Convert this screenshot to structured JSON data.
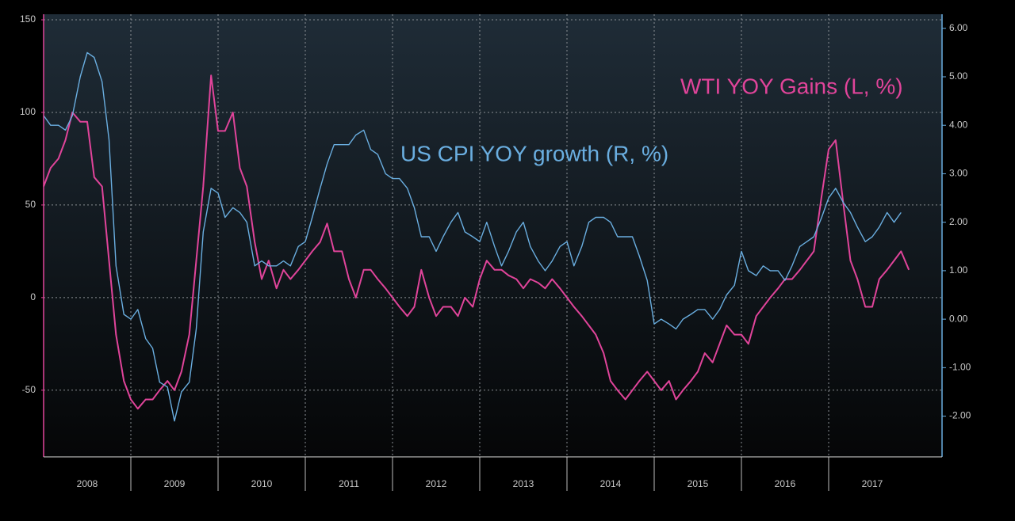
{
  "chart_data": {
    "type": "line",
    "annotations": [
      "WTI YOY Gains (L, %)",
      "US CPI YOY growth (R, %)"
    ],
    "x": [
      2008.0,
      2008.08,
      2008.17,
      2008.25,
      2008.33,
      2008.42,
      2008.5,
      2008.58,
      2008.67,
      2008.75,
      2008.83,
      2008.92,
      2009.0,
      2009.08,
      2009.17,
      2009.25,
      2009.33,
      2009.42,
      2009.5,
      2009.58,
      2009.67,
      2009.75,
      2009.83,
      2009.92,
      2010.0,
      2010.08,
      2010.17,
      2010.25,
      2010.33,
      2010.42,
      2010.5,
      2010.58,
      2010.67,
      2010.75,
      2010.83,
      2010.92,
      2011.0,
      2011.08,
      2011.17,
      2011.25,
      2011.33,
      2011.42,
      2011.5,
      2011.58,
      2011.67,
      2011.75,
      2011.83,
      2011.92,
      2012.0,
      2012.08,
      2012.17,
      2012.25,
      2012.33,
      2012.42,
      2012.5,
      2012.58,
      2012.67,
      2012.75,
      2012.83,
      2012.92,
      2013.0,
      2013.08,
      2013.17,
      2013.25,
      2013.33,
      2013.42,
      2013.5,
      2013.58,
      2013.67,
      2013.75,
      2013.83,
      2013.92,
      2014.0,
      2014.08,
      2014.17,
      2014.25,
      2014.33,
      2014.42,
      2014.5,
      2014.58,
      2014.67,
      2014.75,
      2014.83,
      2014.92,
      2015.0,
      2015.08,
      2015.17,
      2015.25,
      2015.33,
      2015.42,
      2015.5,
      2015.58,
      2015.67,
      2015.75,
      2015.83,
      2015.92,
      2016.0,
      2016.08,
      2016.17,
      2016.25,
      2016.33,
      2016.42,
      2016.5,
      2016.58,
      2016.67,
      2016.75,
      2016.83,
      2016.92,
      2017.0,
      2017.08,
      2017.17,
      2017.25,
      2017.33,
      2017.42,
      2017.5,
      2017.58,
      2017.67,
      2017.75,
      2017.83,
      2017.92
    ],
    "series": [
      {
        "name": "WTI YOY Gains",
        "color": "#e0449a",
        "axis": "y",
        "values": [
          60,
          70,
          75,
          85,
          100,
          95,
          95,
          65,
          60,
          20,
          -20,
          -45,
          -55,
          -60,
          -55,
          -55,
          -50,
          -45,
          -50,
          -40,
          -20,
          20,
          60,
          120,
          90,
          90,
          100,
          70,
          60,
          30,
          10,
          20,
          5,
          15,
          10,
          15,
          20,
          25,
          30,
          40,
          25,
          25,
          10,
          0,
          15,
          15,
          10,
          5,
          0,
          -5,
          -10,
          -5,
          15,
          0,
          -10,
          -5,
          -5,
          -10,
          0,
          -5,
          10,
          20,
          15,
          15,
          12,
          10,
          5,
          10,
          8,
          5,
          10,
          5,
          0,
          -5,
          -10,
          -15,
          -20,
          -30,
          -45,
          -50,
          -55,
          -50,
          -45,
          -40,
          -45,
          -50,
          -45,
          -55,
          -50,
          -45,
          -40,
          -30,
          -35,
          -25,
          -15,
          -20,
          -20,
          -25,
          -10,
          -5,
          0,
          5,
          10,
          10,
          15,
          20,
          25,
          55,
          80,
          85,
          50,
          20,
          10,
          -5,
          -5,
          10,
          15,
          20,
          25,
          15
        ]
      },
      {
        "name": "US CPI YOY growth",
        "color": "#6aaee0",
        "axis": "y2",
        "values": [
          4.2,
          4.0,
          4.0,
          3.9,
          4.2,
          5.0,
          5.5,
          5.4,
          4.9,
          3.7,
          1.1,
          0.1,
          0.0,
          0.2,
          -0.4,
          -0.6,
          -1.3,
          -1.4,
          -2.1,
          -1.5,
          -1.3,
          -0.2,
          1.8,
          2.7,
          2.6,
          2.1,
          2.3,
          2.2,
          2.0,
          1.1,
          1.2,
          1.1,
          1.1,
          1.2,
          1.1,
          1.5,
          1.6,
          2.1,
          2.7,
          3.2,
          3.6,
          3.6,
          3.6,
          3.8,
          3.9,
          3.5,
          3.4,
          3.0,
          2.9,
          2.9,
          2.7,
          2.3,
          1.7,
          1.7,
          1.4,
          1.7,
          2.0,
          2.2,
          1.8,
          1.7,
          1.6,
          2.0,
          1.5,
          1.1,
          1.4,
          1.8,
          2.0,
          1.5,
          1.2,
          1.0,
          1.2,
          1.5,
          1.6,
          1.1,
          1.5,
          2.0,
          2.1,
          2.1,
          2.0,
          1.7,
          1.7,
          1.7,
          1.3,
          0.8,
          -0.1,
          0.0,
          -0.1,
          -0.2,
          0.0,
          0.1,
          0.2,
          0.2,
          0.0,
          0.2,
          0.5,
          0.7,
          1.4,
          1.0,
          0.9,
          1.1,
          1.0,
          1.0,
          0.8,
          1.1,
          1.5,
          1.6,
          1.7,
          2.1,
          2.5,
          2.7,
          2.4,
          2.2,
          1.9,
          1.6,
          1.7,
          1.9,
          2.2,
          2.0,
          2.2,
          null
        ]
      }
    ],
    "xlim": [
      2008,
      2018.3
    ],
    "xticks": [
      {
        "value": 2008.5,
        "label": "2008"
      },
      {
        "value": 2009.5,
        "label": "2009"
      },
      {
        "value": 2010.5,
        "label": "2010"
      },
      {
        "value": 2011.5,
        "label": "2011"
      },
      {
        "value": 2012.5,
        "label": "2012"
      },
      {
        "value": 2013.5,
        "label": "2013"
      },
      {
        "value": 2014.5,
        "label": "2014"
      },
      {
        "value": 2015.5,
        "label": "2015"
      },
      {
        "value": 2016.5,
        "label": "2016"
      },
      {
        "value": 2017.5,
        "label": "2017"
      }
    ],
    "ylim": [
      -86,
      153
    ],
    "yticks": [
      -50,
      0,
      50,
      100,
      150
    ],
    "y2lim": [
      -2.84,
      6.29
    ],
    "y2ticks": [
      {
        "value": -2,
        "label": "-2.00"
      },
      {
        "value": -1,
        "label": "-1.00"
      },
      {
        "value": 0,
        "label": "0.00"
      },
      {
        "value": 1,
        "label": "1.00"
      },
      {
        "value": 2,
        "label": "2.00"
      },
      {
        "value": 3,
        "label": "3.00"
      },
      {
        "value": 4,
        "label": "4.00"
      },
      {
        "value": 5,
        "label": "5.00"
      },
      {
        "value": 6,
        "label": "6.00"
      }
    ],
    "grid": true
  }
}
